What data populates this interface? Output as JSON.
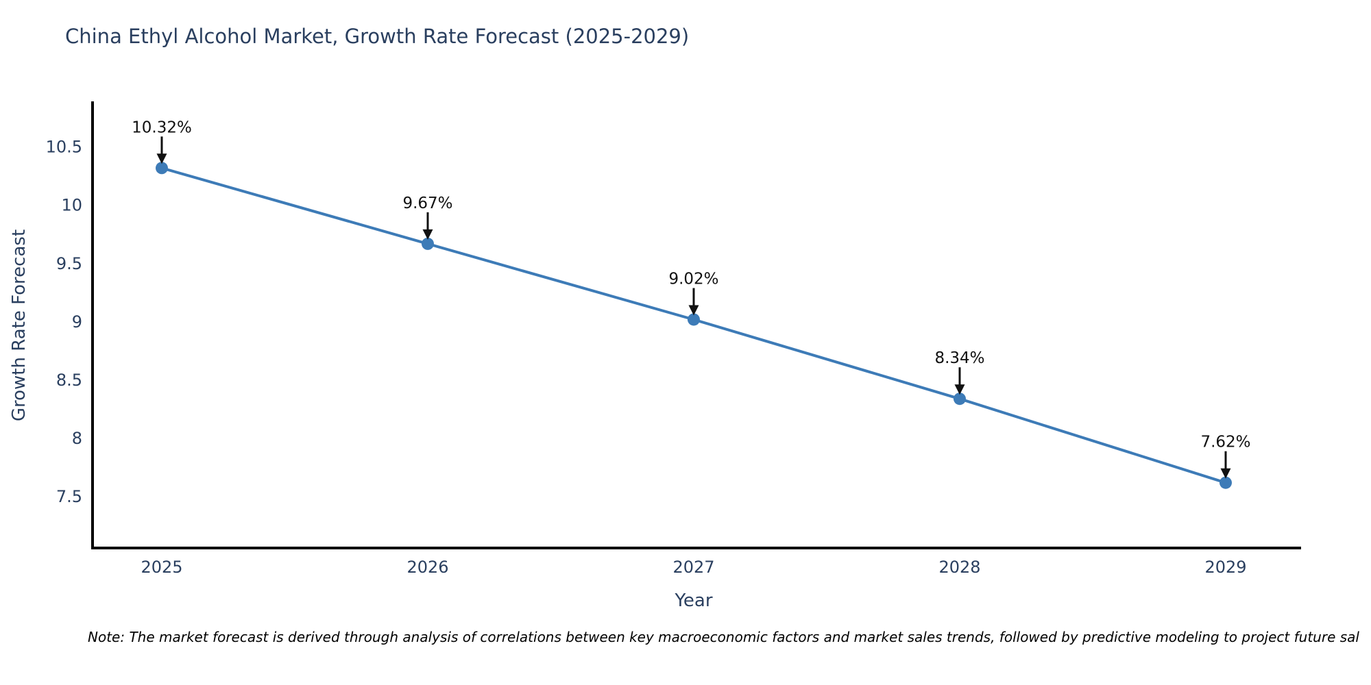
{
  "chart_data": {
    "type": "line",
    "title": "China Ethyl Alcohol Market, Growth Rate Forecast (2025-2029)",
    "xlabel": "Year",
    "ylabel": "Growth Rate Forecast",
    "categories": [
      "2025",
      "2026",
      "2027",
      "2028",
      "2029"
    ],
    "series": [
      {
        "name": "Growth Rate Forecast",
        "values": [
          10.32,
          9.67,
          9.02,
          8.34,
          7.62
        ],
        "point_labels": [
          "10.32%",
          "9.67%",
          "9.02%",
          "8.34%",
          "7.62%"
        ]
      }
    ],
    "y_ticks": [
      10.5,
      10,
      9.5,
      9,
      8.5,
      8,
      7.5
    ],
    "ylim": [
      7.06,
      10.88
    ],
    "grid": false,
    "legend_position": "none",
    "colors": {
      "line": "#3d7bb7",
      "marker": "#3d7bb7",
      "axis": "#000000",
      "tick_text": "#2a3f5f",
      "annotation": "#111111"
    }
  },
  "note": "Note: The market forecast is derived through analysis of correlations between key macroeconomic factors and market sales trends, followed by predictive modeling to project future sal"
}
